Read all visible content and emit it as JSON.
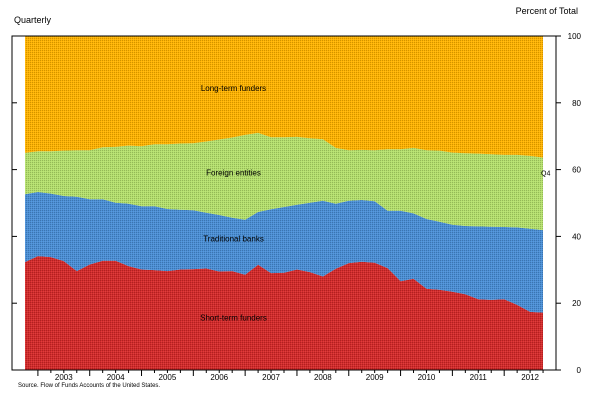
{
  "chart_data": {
    "type": "area",
    "stacked": true,
    "frequency_label": "Quarterly",
    "ylabel": "Percent of Total",
    "source": "Source. Flow of Funds Accounts of the United States.",
    "end_label": "Q4",
    "ylim": [
      0,
      100
    ],
    "yticks": [
      0,
      20,
      40,
      60,
      80,
      100
    ],
    "x_start": 2002.75,
    "x_step": 0.25,
    "xlim": [
      2002.5,
      2013.0
    ],
    "year_labels": [
      "2003",
      "2004",
      "2005",
      "2006",
      "2007",
      "2008",
      "2009",
      "2010",
      "2011",
      "2012"
    ],
    "grid": false,
    "series_colors": [
      "#d42a2a",
      "#4a8fd6",
      "#b4e06c",
      "#ffb300"
    ],
    "series": [
      {
        "name": "Short-term funders",
        "values": [
          32.3,
          34.1,
          33.8,
          32.6,
          29.6,
          31.6,
          32.7,
          32.7,
          31.1,
          30.1,
          29.9,
          29.6,
          30.1,
          30.2,
          30.4,
          29.5,
          29.6,
          28.5,
          31.5,
          29.0,
          29.1,
          30.1,
          29.3,
          28.0,
          30.3,
          32.0,
          32.4,
          32.1,
          30.5,
          26.6,
          27.3,
          24.3,
          24.0,
          23.4,
          22.7,
          21.2,
          21.0,
          21.2,
          19.5,
          17.4,
          17.2
        ]
      },
      {
        "name": "Traditional banks",
        "values": [
          20.3,
          19.2,
          19.0,
          19.5,
          22.3,
          19.5,
          18.4,
          17.4,
          18.7,
          18.9,
          19.1,
          18.6,
          17.9,
          17.6,
          16.7,
          16.9,
          16.0,
          16.5,
          15.8,
          19.1,
          19.7,
          19.4,
          20.8,
          22.7,
          19.5,
          18.7,
          18.5,
          18.4,
          17.2,
          21.1,
          19.6,
          20.9,
          20.4,
          20.1,
          20.4,
          21.8,
          21.9,
          21.6,
          23.2,
          24.9,
          24.7
        ]
      },
      {
        "name": "Foreign entities",
        "values": [
          12.4,
          12.2,
          12.7,
          13.6,
          13.9,
          14.7,
          15.6,
          16.7,
          17.4,
          18.0,
          18.6,
          19.4,
          19.8,
          20.1,
          21.3,
          22.6,
          24.0,
          25.4,
          23.7,
          21.6,
          20.9,
          20.3,
          19.3,
          18.4,
          16.7,
          15.1,
          15.0,
          15.3,
          18.4,
          18.4,
          19.6,
          20.6,
          21.3,
          21.6,
          21.8,
          21.8,
          21.7,
          21.6,
          21.7,
          21.8,
          21.7
        ]
      },
      {
        "name": "Long-term funders",
        "values": [
          35.0,
          34.5,
          34.5,
          34.3,
          34.2,
          34.2,
          33.3,
          33.2,
          32.8,
          33.0,
          32.4,
          32.4,
          32.2,
          32.1,
          31.6,
          31.0,
          30.4,
          29.6,
          29.0,
          30.3,
          30.3,
          30.2,
          30.6,
          30.9,
          33.5,
          34.2,
          34.1,
          34.2,
          33.9,
          33.9,
          33.5,
          34.2,
          34.3,
          34.9,
          35.1,
          35.2,
          35.4,
          35.6,
          35.6,
          35.9,
          36.4
        ]
      }
    ]
  }
}
